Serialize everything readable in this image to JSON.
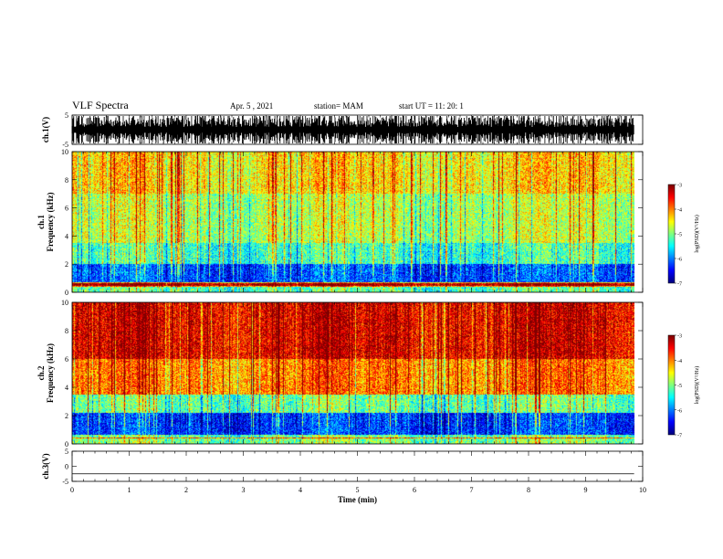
{
  "header": {
    "title": "VLF Spectra",
    "date": "Apr. 5 , 2021",
    "station": "station= MAM",
    "start": "start UT = 11: 20: 1"
  },
  "chart_data": [
    {
      "type": "line",
      "panel": "ch1-waveform",
      "ylabel": "ch.1(V)",
      "ylim": [
        -5,
        5
      ],
      "yticks": [
        "5",
        "-5"
      ],
      "xlim": [
        0,
        10
      ],
      "description_series": [
        {
          "x": [
            0,
            9.85
          ],
          "amplitude_range_V": [
            -5,
            5
          ]
        }
      ]
    },
    {
      "type": "heatmap",
      "panel": "ch1-spectrogram",
      "ylabel": "ch.1\nFrequency (kHz)",
      "ylabel_lines": [
        "ch.1",
        "Frequency (kHz)"
      ],
      "ylim": [
        0,
        10
      ],
      "yticks": [
        "0",
        "2",
        "4",
        "6",
        "8",
        "10"
      ],
      "xlim": [
        0,
        10
      ],
      "data_extent_min": [
        0,
        9.85
      ],
      "colorbar": {
        "label": "log(PSD)(V²/Hz)",
        "ticks": [
          "-3",
          "-4",
          "-5",
          "-6",
          "-7"
        ],
        "range": [
          -7,
          -3
        ]
      },
      "bands": [
        {
          "f_kHz": [
            0,
            0.4
          ],
          "logpsd": -5.2
        },
        {
          "f_kHz": [
            0.4,
            0.7
          ],
          "logpsd": -4.3
        },
        {
          "f_kHz": [
            0.7,
            2.0
          ],
          "logpsd": -6.2
        },
        {
          "f_kHz": [
            2.0,
            3.5
          ],
          "logpsd": -5.3
        },
        {
          "f_kHz": [
            3.5,
            7.0
          ],
          "logpsd": -4.8
        },
        {
          "f_kHz": [
            7.0,
            10
          ],
          "logpsd": -4.4
        }
      ]
    },
    {
      "type": "heatmap",
      "panel": "ch2-spectrogram",
      "ylabel": "ch.2\nFrequency (kHz)",
      "ylabel_lines": [
        "ch.2",
        "Frequency (kHz)"
      ],
      "ylim": [
        0,
        10
      ],
      "yticks": [
        "0",
        "2",
        "4",
        "6",
        "8",
        "10"
      ],
      "xlim": [
        0,
        10
      ],
      "data_extent_min": [
        0,
        9.85
      ],
      "colorbar": {
        "label": "log(PSD)(V²/Hz)",
        "ticks": [
          "-3",
          "-4",
          "-5",
          "-6",
          "-7"
        ],
        "range": [
          -7,
          -3
        ]
      },
      "bands": [
        {
          "f_kHz": [
            0,
            0.4
          ],
          "logpsd": -5.0
        },
        {
          "f_kHz": [
            0.4,
            2.2
          ],
          "logpsd": -6.3
        },
        {
          "f_kHz": [
            2.2,
            3.5
          ],
          "logpsd": -5.1
        },
        {
          "f_kHz": [
            3.5,
            6.0
          ],
          "logpsd": -4.0
        },
        {
          "f_kHz": [
            6.0,
            10
          ],
          "logpsd": -3.4
        }
      ]
    },
    {
      "type": "line",
      "panel": "ch3-waveform",
      "ylabel": "ch.3(V)",
      "ylim": [
        -5,
        5
      ],
      "yticks": [
        "5",
        "0",
        "-5"
      ],
      "xlim": [
        0,
        10
      ],
      "series": [
        {
          "x": [
            0,
            9.85
          ],
          "y": [
            -2.5,
            -2.5
          ]
        }
      ],
      "xlabel": "Time (min)",
      "xticks": [
        "0",
        "1",
        "2",
        "3",
        "4",
        "5",
        "6",
        "7",
        "8",
        "9",
        "10"
      ]
    }
  ]
}
